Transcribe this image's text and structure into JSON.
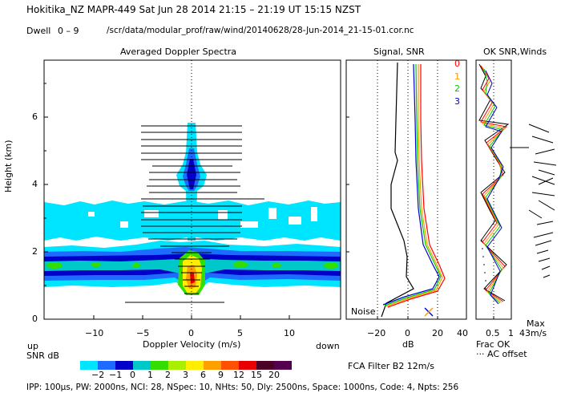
{
  "header": {
    "title": "Hokitika_NZ   MAPR-449   Sat Jun 28 2014 21:15 – 21:19 UT 15:15 NZST",
    "dwell_label": "Dwell",
    "dwell_range": "0  –  9",
    "file_path": "/scr/data/modular_prof/raw/wind/20140628/28-Jun-2014_21-15-01.cor.nc"
  },
  "spectra_panel": {
    "title": "Averaged Doppler Spectra",
    "ylabel": "Height (km)",
    "xlabel": "Doppler Velocity (m/s)",
    "x_ticks": [
      "−10",
      "−5",
      "0",
      "5",
      "10"
    ],
    "y_ticks": [
      "0",
      "2",
      "4",
      "6"
    ],
    "up_label": "up",
    "down_label": "down"
  },
  "signal_panel": {
    "title": "Signal, SNR",
    "x_ticks": [
      "−20",
      "0",
      "20",
      "40"
    ],
    "xlabel": "dB",
    "noise_label": "Noise"
  },
  "winds_panel": {
    "title": "OK SNR,Winds",
    "legend": [
      {
        "label": "0",
        "color": "#ff0000"
      },
      {
        "label": "1",
        "color": "#ff9900"
      },
      {
        "label": "2",
        "color": "#00cc00"
      },
      {
        "label": "3",
        "color": "#0000cc"
      }
    ],
    "x_ticks": [
      "0.5",
      "1"
    ],
    "frac_ok_label": "Frac OK",
    "ac_offset_label": "··· AC offset",
    "max_label": "Max",
    "max_value": "43m/s"
  },
  "colorbar": {
    "label": "SNR dB",
    "ticks": [
      "−2",
      "−1",
      "0",
      "1",
      "2",
      "3",
      "6",
      "9",
      "12",
      "15",
      "20"
    ],
    "colors": [
      "#00e5ff",
      "#1e6bff",
      "#0000c8",
      "#00c8c8",
      "#33dd00",
      "#a8f000",
      "#ffee00",
      "#ffa000",
      "#ff5000",
      "#e80000",
      "#4d0026",
      "#55004d"
    ]
  },
  "filter_label": "FCA Filter B2 12m/s",
  "footer": "IPP: 100μs,  PW: 2000ns,  NCI:  28,  NSpec: 10,  NHts: 50,  Dly: 2500ns,  Space: 1000ns,  Code: 4,  Npts: 256"
}
